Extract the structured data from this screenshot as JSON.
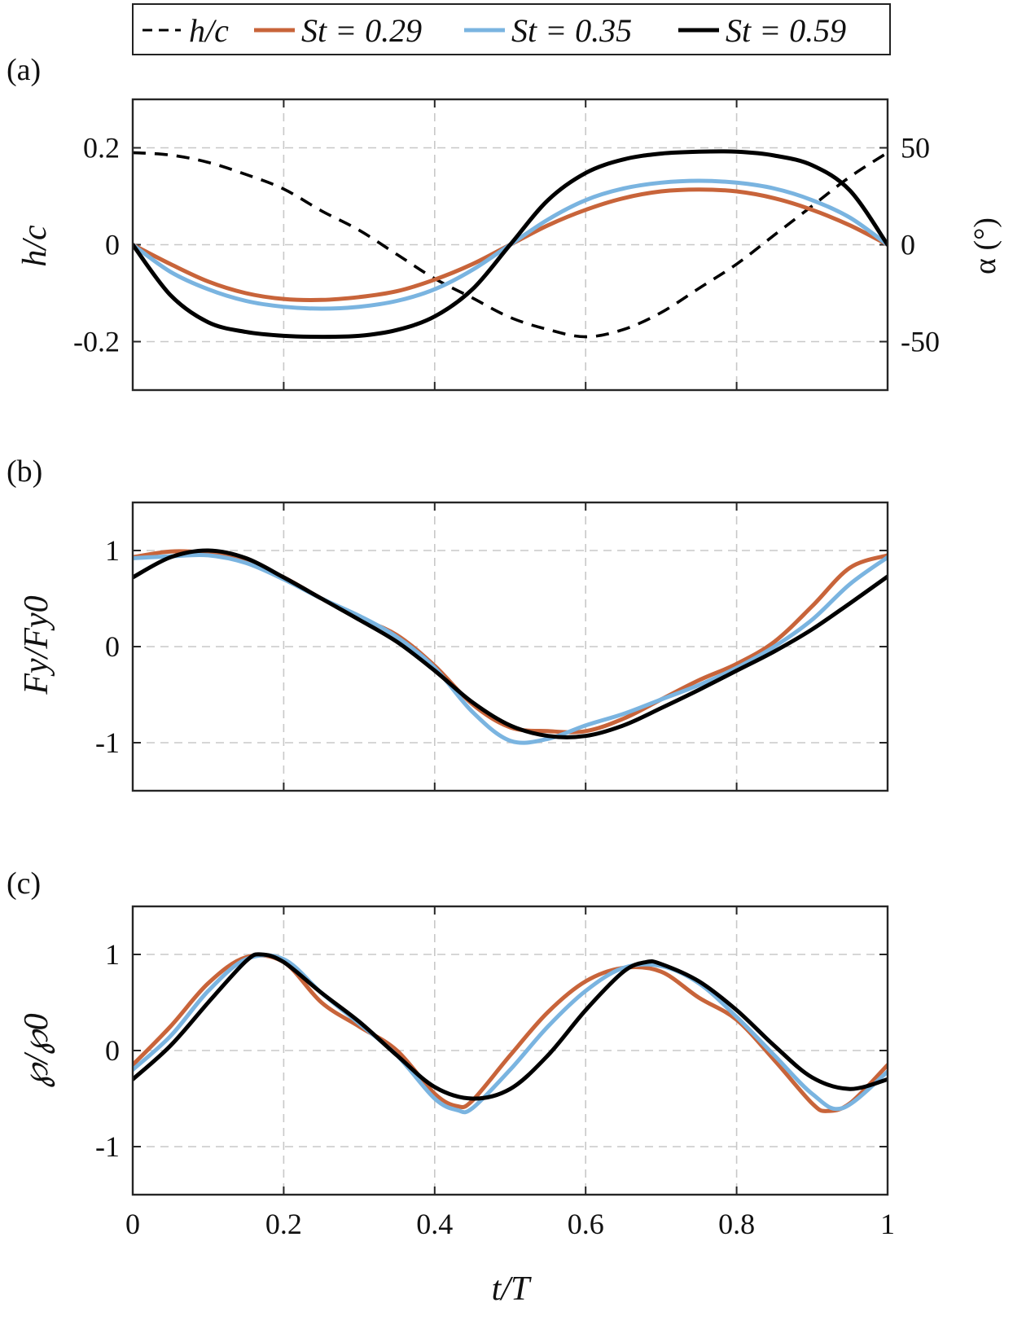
{
  "chart_data": [
    {
      "type": "line",
      "panel_label": "(a)",
      "xlabel": "",
      "ylabel": "h/c",
      "ylabel_right": "α (°)",
      "x_range": [
        0,
        1
      ],
      "y_range": [
        -0.3,
        0.3
      ],
      "y_ticks": [
        {
          "value": -0.2,
          "label": "-0.2"
        },
        {
          "value": 0,
          "label": "0"
        },
        {
          "value": 0.2,
          "label": "0.2"
        }
      ],
      "y_right_range": [
        -75,
        75
      ],
      "y_right_ticks": [
        {
          "value": -50,
          "label": "-50"
        },
        {
          "value": 0,
          "label": "0"
        },
        {
          "value": 50,
          "label": "50"
        }
      ],
      "x_grid": [
        0.2,
        0.4,
        0.6,
        0.8
      ],
      "series": [
        {
          "name": "h/c",
          "axis": "left",
          "color": "#000000",
          "dashed": true,
          "x": [
            0,
            0.05,
            0.1,
            0.15,
            0.2,
            0.25,
            0.3,
            0.35,
            0.4,
            0.45,
            0.5,
            0.55,
            0.6,
            0.65,
            0.7,
            0.75,
            0.8,
            0.85,
            0.9,
            0.95,
            1
          ],
          "y": [
            0.19,
            0.185,
            0.17,
            0.145,
            0.115,
            0.07,
            0.03,
            -0.02,
            -0.07,
            -0.11,
            -0.15,
            -0.175,
            -0.19,
            -0.175,
            -0.14,
            -0.09,
            -0.04,
            0.02,
            0.08,
            0.14,
            0.19
          ]
        },
        {
          "name": "St = 0.29",
          "axis": "right",
          "color": "#c8643a",
          "x": [
            0,
            0.05,
            0.1,
            0.15,
            0.2,
            0.25,
            0.3,
            0.35,
            0.4,
            0.45,
            0.5,
            0.55,
            0.6,
            0.65,
            0.7,
            0.75,
            0.8,
            0.85,
            0.9,
            0.95,
            1
          ],
          "y": [
            0,
            -10,
            -19,
            -25,
            -28,
            -28.5,
            -27,
            -24,
            -18,
            -10,
            0,
            10,
            18,
            24,
            27.5,
            28.5,
            27.5,
            24,
            18,
            10,
            0
          ]
        },
        {
          "name": "St = 0.35",
          "axis": "right",
          "color": "#7ab4e0",
          "x": [
            0,
            0.05,
            0.1,
            0.15,
            0.2,
            0.25,
            0.3,
            0.35,
            0.4,
            0.45,
            0.5,
            0.55,
            0.6,
            0.65,
            0.7,
            0.75,
            0.8,
            0.85,
            0.9,
            0.95,
            1
          ],
          "y": [
            0,
            -14,
            -23,
            -29,
            -32,
            -33,
            -32,
            -29,
            -23,
            -13,
            0,
            13,
            23,
            29,
            32,
            33,
            32,
            29,
            23,
            14,
            0
          ]
        },
        {
          "name": "St = 0.59",
          "axis": "right",
          "color": "#000000",
          "x": [
            0,
            0.05,
            0.1,
            0.15,
            0.2,
            0.25,
            0.3,
            0.35,
            0.4,
            0.45,
            0.5,
            0.55,
            0.6,
            0.65,
            0.7,
            0.75,
            0.8,
            0.85,
            0.9,
            0.95,
            1
          ],
          "y": [
            0,
            -26,
            -40,
            -45,
            -47,
            -47.5,
            -47,
            -44,
            -37,
            -23,
            0,
            23,
            37,
            44,
            47,
            48,
            48,
            46,
            41,
            28,
            0
          ]
        }
      ]
    },
    {
      "type": "line",
      "panel_label": "(b)",
      "xlabel": "",
      "ylabel": "Fy/Fy0",
      "x_range": [
        0,
        1
      ],
      "y_range": [
        -1.5,
        1.5
      ],
      "y_ticks": [
        {
          "value": -1,
          "label": "-1"
        },
        {
          "value": 0,
          "label": "0"
        },
        {
          "value": 1,
          "label": "1"
        }
      ],
      "x_grid": [
        0.2,
        0.4,
        0.6,
        0.8
      ],
      "series": [
        {
          "name": "St = 0.29",
          "color": "#c8643a",
          "x": [
            0,
            0.05,
            0.1,
            0.15,
            0.2,
            0.25,
            0.3,
            0.35,
            0.4,
            0.45,
            0.5,
            0.55,
            0.6,
            0.65,
            0.7,
            0.75,
            0.8,
            0.85,
            0.9,
            0.95,
            1
          ],
          "y": [
            0.93,
            0.99,
            0.97,
            0.88,
            0.72,
            0.5,
            0.3,
            0.12,
            -0.2,
            -0.6,
            -0.84,
            -0.88,
            -0.88,
            -0.75,
            -0.55,
            -0.35,
            -0.18,
            0.05,
            0.42,
            0.82,
            0.95
          ]
        },
        {
          "name": "St = 0.35",
          "color": "#7ab4e0",
          "x": [
            0,
            0.05,
            0.1,
            0.15,
            0.2,
            0.25,
            0.3,
            0.35,
            0.4,
            0.45,
            0.5,
            0.55,
            0.6,
            0.65,
            0.7,
            0.75,
            0.8,
            0.85,
            0.9,
            0.95,
            1
          ],
          "y": [
            0.92,
            0.94,
            0.95,
            0.87,
            0.7,
            0.5,
            0.32,
            0.1,
            -0.22,
            -0.68,
            -0.98,
            -0.96,
            -0.82,
            -0.7,
            -0.55,
            -0.4,
            -0.22,
            0.0,
            0.28,
            0.65,
            0.93
          ]
        },
        {
          "name": "St = 0.59",
          "color": "#000000",
          "x": [
            0,
            0.05,
            0.1,
            0.15,
            0.2,
            0.25,
            0.3,
            0.35,
            0.4,
            0.45,
            0.5,
            0.55,
            0.6,
            0.65,
            0.7,
            0.75,
            0.8,
            0.85,
            0.9,
            0.95,
            1
          ],
          "y": [
            0.72,
            0.93,
            1.0,
            0.92,
            0.72,
            0.5,
            0.28,
            0.05,
            -0.25,
            -0.58,
            -0.82,
            -0.93,
            -0.93,
            -0.82,
            -0.64,
            -0.45,
            -0.25,
            -0.05,
            0.18,
            0.45,
            0.73
          ]
        }
      ]
    },
    {
      "type": "line",
      "panel_label": "(c)",
      "xlabel": "t/T",
      "ylabel": "℘/℘0",
      "x_range": [
        0,
        1
      ],
      "x_ticks": [
        {
          "value": 0,
          "label": "0"
        },
        {
          "value": 0.2,
          "label": "0.2"
        },
        {
          "value": 0.4,
          "label": "0.4"
        },
        {
          "value": 0.6,
          "label": "0.6"
        },
        {
          "value": 0.8,
          "label": "0.8"
        },
        {
          "value": 1,
          "label": "1"
        }
      ],
      "y_range": [
        -1.5,
        1.5
      ],
      "y_ticks": [
        {
          "value": -1,
          "label": "-1"
        },
        {
          "value": 0,
          "label": "0"
        },
        {
          "value": 1,
          "label": "1"
        }
      ],
      "x_grid": [
        0.2,
        0.4,
        0.6,
        0.8
      ],
      "series": [
        {
          "name": "St = 0.29",
          "color": "#c8643a",
          "x": [
            0,
            0.05,
            0.1,
            0.15,
            0.2,
            0.25,
            0.3,
            0.35,
            0.4,
            0.43,
            0.45,
            0.5,
            0.55,
            0.6,
            0.65,
            0.7,
            0.75,
            0.8,
            0.85,
            0.9,
            0.92,
            0.95,
            1
          ],
          "y": [
            -0.15,
            0.25,
            0.7,
            0.97,
            0.92,
            0.5,
            0.25,
            0.0,
            -0.45,
            -0.58,
            -0.52,
            -0.05,
            0.4,
            0.72,
            0.86,
            0.82,
            0.55,
            0.32,
            -0.1,
            -0.55,
            -0.63,
            -0.55,
            -0.15
          ]
        },
        {
          "name": "St = 0.35",
          "color": "#7ab4e0",
          "x": [
            0,
            0.05,
            0.1,
            0.15,
            0.2,
            0.25,
            0.3,
            0.35,
            0.4,
            0.43,
            0.45,
            0.5,
            0.55,
            0.6,
            0.65,
            0.7,
            0.75,
            0.8,
            0.85,
            0.9,
            0.94,
            1
          ],
          "y": [
            -0.2,
            0.15,
            0.62,
            0.95,
            0.95,
            0.6,
            0.28,
            -0.05,
            -0.5,
            -0.62,
            -0.6,
            -0.2,
            0.25,
            0.62,
            0.86,
            0.88,
            0.7,
            0.35,
            -0.05,
            -0.45,
            -0.6,
            -0.22
          ]
        },
        {
          "name": "St = 0.59",
          "color": "#000000",
          "x": [
            0,
            0.05,
            0.1,
            0.15,
            0.17,
            0.2,
            0.25,
            0.3,
            0.35,
            0.4,
            0.45,
            0.5,
            0.55,
            0.6,
            0.65,
            0.68,
            0.7,
            0.75,
            0.8,
            0.85,
            0.9,
            0.95,
            1
          ],
          "y": [
            -0.3,
            0.05,
            0.5,
            0.93,
            1.0,
            0.92,
            0.6,
            0.3,
            -0.05,
            -0.38,
            -0.5,
            -0.4,
            -0.05,
            0.42,
            0.82,
            0.92,
            0.9,
            0.72,
            0.42,
            0.05,
            -0.28,
            -0.4,
            -0.3
          ]
        }
      ]
    }
  ],
  "legend": {
    "entries": [
      {
        "label": "h/c",
        "color": "#000000",
        "dashed": true
      },
      {
        "label": "St = 0.29",
        "color": "#c8643a",
        "dashed": false
      },
      {
        "label": "St = 0.35",
        "color": "#7ab4e0",
        "dashed": false
      },
      {
        "label": "St = 0.59",
        "color": "#000000",
        "dashed": false
      }
    ]
  }
}
